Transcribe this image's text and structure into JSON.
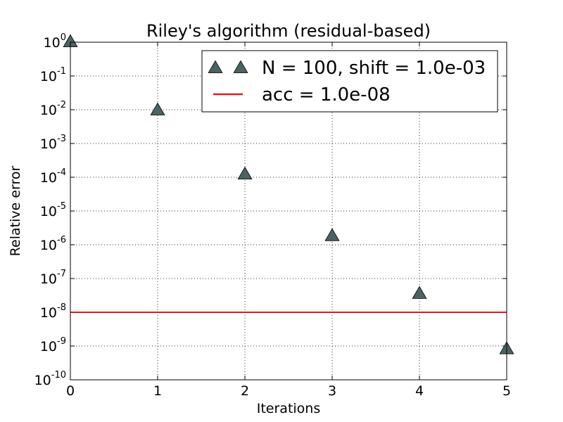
{
  "chart_data": {
    "type": "scatter",
    "title": "Riley's algorithm (residual-based)",
    "xlabel": "Iterations",
    "ylabel": "Relative error",
    "xlim": [
      0,
      5
    ],
    "ylim": [
      1e-10,
      1
    ],
    "yscale": "log",
    "grid": true,
    "legend_position": "top-right",
    "x_ticks": [
      "0",
      "1",
      "2",
      "3",
      "4",
      "5"
    ],
    "y_ticks": [
      {
        "base": "10",
        "exp": "0"
      },
      {
        "base": "10",
        "exp": "-1"
      },
      {
        "base": "10",
        "exp": "-2"
      },
      {
        "base": "10",
        "exp": "-3"
      },
      {
        "base": "10",
        "exp": "-4"
      },
      {
        "base": "10",
        "exp": "-5"
      },
      {
        "base": "10",
        "exp": "-6"
      },
      {
        "base": "10",
        "exp": "-7"
      },
      {
        "base": "10",
        "exp": "-8"
      },
      {
        "base": "10",
        "exp": "-9"
      },
      {
        "base": "10",
        "exp": "-10"
      }
    ],
    "series": [
      {
        "name": "N = 100, shift = 1.0e-03",
        "marker": "triangle",
        "color": "#4a6363",
        "x": [
          0,
          1,
          2,
          3,
          4,
          5
        ],
        "y": [
          1.0,
          0.0095,
          0.00012,
          1.8e-06,
          3.5e-08,
          8e-10
        ]
      },
      {
        "name": "acc = 1.0e-08",
        "marker": "line",
        "color": "#e41a1c",
        "x": [
          0,
          5
        ],
        "y": [
          1e-08,
          1e-08
        ]
      }
    ]
  }
}
